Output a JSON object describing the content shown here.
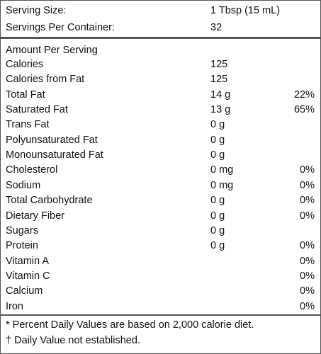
{
  "serving": {
    "rows": [
      {
        "label": "Serving Size:",
        "value": "1 Tbsp (15 mL)"
      },
      {
        "label": "Servings Per Container:",
        "value": "32"
      }
    ]
  },
  "nutrients": {
    "heading": "Amount Per Serving",
    "rows": [
      {
        "label": "Calories",
        "amount": "125"
      },
      {
        "label": "Calories from Fat",
        "amount": "125"
      },
      {
        "label": "Total Fat",
        "amount": "14 g",
        "dv": "22%"
      },
      {
        "label": "Saturated Fat",
        "amount": "13 g",
        "dv": "65%"
      },
      {
        "label": "Trans Fat",
        "amount": "0 g"
      },
      {
        "label": "Polyunsaturated Fat",
        "amount": "0 g"
      },
      {
        "label": "Monounsaturated Fat",
        "amount": "0 g"
      },
      {
        "label": "Cholesterol",
        "amount": "0 mg",
        "dv": "0%"
      },
      {
        "label": "Sodium",
        "amount": "0 mg",
        "dv": "0%"
      },
      {
        "label": "Total Carbohydrate",
        "amount": "0 g",
        "dv": "0%"
      },
      {
        "label": "Dietary Fiber",
        "amount": "0 g",
        "dv": "0%"
      },
      {
        "label": "Sugars",
        "amount": "0 g"
      },
      {
        "label": "Protein",
        "amount": "0 g",
        "dv": "0%"
      },
      {
        "label": "Vitamin A",
        "dv": "0%"
      },
      {
        "label": "Vitamin C",
        "dv": "0%"
      },
      {
        "label": "Calcium",
        "dv": "0%"
      },
      {
        "label": "Iron",
        "dv": "0%"
      }
    ]
  },
  "footnotes": [
    "* Percent Daily Values are based on 2,000 calorie diet.",
    "† Daily Value not established."
  ]
}
